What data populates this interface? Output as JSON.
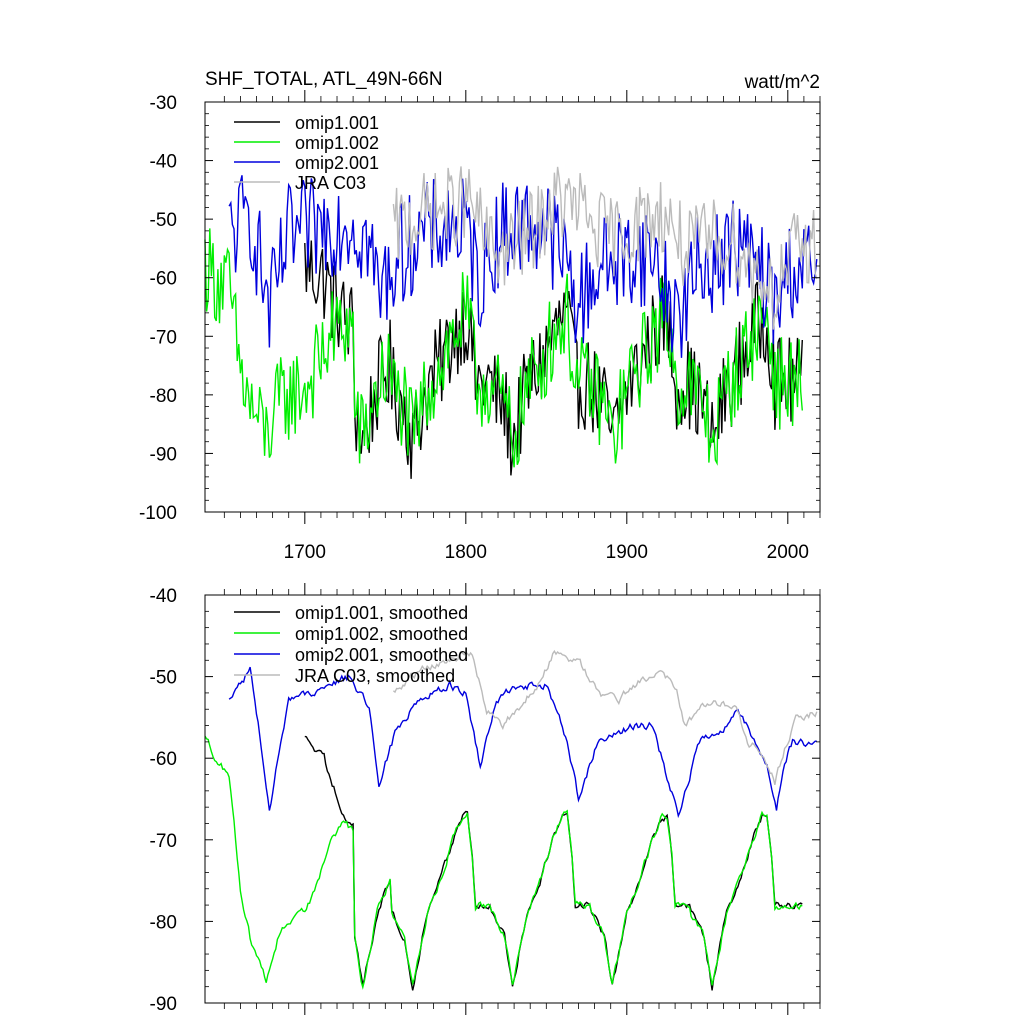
{
  "chart_data": [
    {
      "type": "line",
      "title": "SHF_TOTAL, ATL_49N-66N",
      "units": "watt/m^2",
      "xlim": [
        1638,
        2020
      ],
      "ylim": [
        -100,
        -30
      ],
      "xticks": [
        1700,
        1800,
        1900,
        2000
      ],
      "yticks": [
        -30,
        -40,
        -50,
        -60,
        -70,
        -80,
        -90,
        -100
      ],
      "legend": "top-left",
      "cycle_starts": [
        1638,
        1700,
        1762,
        1824,
        1886,
        1948
      ],
      "series": [
        {
          "name": "omip1.001",
          "color": "#000000",
          "start": 1700,
          "end": 2009,
          "shape": "a",
          "noise": 8
        },
        {
          "name": "omip1.002",
          "color": "#00ee00",
          "start": 1638,
          "end": 2009,
          "shape": "a",
          "noise": 8
        },
        {
          "name": "omip2.001",
          "color": "#0000dd",
          "start": 1653,
          "end": 2018,
          "shape": "b",
          "noise": 9
        },
        {
          "name": "JRA C03",
          "color": "#bbbbbb",
          "start": 1755,
          "end": 2018,
          "shape": "c",
          "noise": 7
        }
      ]
    },
    {
      "type": "line",
      "title": "",
      "xlim": [
        1638,
        2020
      ],
      "ylim": [
        -90,
        -40
      ],
      "xticks": [
        1700,
        1800,
        1900,
        2000
      ],
      "yticks": [
        -40,
        -50,
        -60,
        -70,
        -80,
        -90
      ],
      "legend": "top-left",
      "cycle_starts": [
        1638,
        1700,
        1762,
        1824,
        1886,
        1948
      ],
      "series": [
        {
          "name": "omip1.001, smoothed",
          "color": "#000000",
          "start": 1700,
          "end": 2009,
          "shape": "a",
          "noise": 0.8
        },
        {
          "name": "omip1.002, smoothed",
          "color": "#00ee00",
          "start": 1638,
          "end": 2009,
          "shape": "a",
          "noise": 0.8
        },
        {
          "name": "omip2.001, smoothed",
          "color": "#0000dd",
          "start": 1653,
          "end": 2018,
          "shape": "b",
          "noise": 0.8
        },
        {
          "name": "JRA C03, smoothed",
          "color": "#bbbbbb",
          "start": 1755,
          "end": 2018,
          "shape": "c",
          "noise": 0.8
        }
      ]
    }
  ],
  "cycle_shapes": {
    "a": {
      "first_cycle": [
        [
          1638,
          -57.5
        ],
        [
          1645,
          -60
        ],
        [
          1653,
          -62
        ],
        [
          1660,
          -76
        ],
        [
          1666,
          -82
        ],
        [
          1676,
          -87
        ],
        [
          1685,
          -81
        ],
        [
          1698,
          -79
        ],
        [
          1700,
          -79
        ],
        [
          1708,
          -75
        ],
        [
          1716,
          -70
        ],
        [
          1725,
          -68
        ],
        [
          1731,
          -69
        ]
      ],
      "regular_cycle": [
        [
          0,
          -79
        ],
        [
          3,
          -80
        ],
        [
          8,
          -82
        ],
        [
          13,
          -88
        ],
        [
          17,
          -84
        ],
        [
          22,
          -79
        ],
        [
          30,
          -75
        ],
        [
          38,
          -70
        ],
        [
          44,
          -67
        ],
        [
          47,
          -67
        ],
        [
          50,
          -72
        ],
        [
          52,
          -78
        ]
      ],
      "black_first_cycle": [
        [
          1700,
          -57.5
        ],
        [
          1706,
          -59
        ],
        [
          1712,
          -60
        ],
        [
          1716,
          -63
        ],
        [
          1721,
          -65
        ],
        [
          1726,
          -68
        ],
        [
          1729,
          -68
        ]
      ]
    },
    "b": {
      "points": [
        [
          1653,
          -53
        ],
        [
          1660,
          -51
        ],
        [
          1666,
          -49
        ],
        [
          1672,
          -57
        ],
        [
          1678,
          -66
        ],
        [
          1690,
          -53
        ],
        [
          1715,
          -51
        ],
        [
          1728,
          -50
        ],
        [
          1740,
          -54
        ],
        [
          1746,
          -63
        ],
        [
          1756,
          -57
        ],
        [
          1770,
          -53
        ],
        [
          1790,
          -51
        ],
        [
          1800,
          -52
        ],
        [
          1809,
          -61
        ],
        [
          1819,
          -53
        ],
        [
          1832,
          -51
        ],
        [
          1850,
          -51
        ],
        [
          1863,
          -58
        ],
        [
          1870,
          -65
        ],
        [
          1882,
          -58
        ],
        [
          1905,
          -56
        ],
        [
          1916,
          -56
        ],
        [
          1926,
          -63
        ],
        [
          1932,
          -67
        ],
        [
          1945,
          -58
        ],
        [
          1962,
          -56
        ],
        [
          1968,
          -54
        ],
        [
          1980,
          -58
        ],
        [
          1987,
          -61
        ],
        [
          1993,
          -66
        ],
        [
          1997,
          -61
        ],
        [
          2003,
          -58
        ],
        [
          2018,
          -58.5
        ]
      ]
    },
    "c": {
      "points": [
        [
          1755,
          -52
        ],
        [
          1773,
          -49
        ],
        [
          1790,
          -48
        ],
        [
          1803,
          -47
        ],
        [
          1813,
          -54
        ],
        [
          1823,
          -56
        ],
        [
          1845,
          -51
        ],
        [
          1855,
          -47
        ],
        [
          1870,
          -48
        ],
        [
          1882,
          -52
        ],
        [
          1895,
          -53
        ],
        [
          1905,
          -51
        ],
        [
          1915,
          -50
        ],
        [
          1922,
          -49
        ],
        [
          1931,
          -52
        ],
        [
          1936,
          -56
        ],
        [
          1945,
          -54
        ],
        [
          1955,
          -53
        ],
        [
          1968,
          -54
        ],
        [
          1975,
          -58
        ],
        [
          1983,
          -59
        ],
        [
          1992,
          -63
        ],
        [
          1998,
          -59
        ],
        [
          2005,
          -55
        ],
        [
          2018,
          -54.5
        ]
      ]
    }
  }
}
